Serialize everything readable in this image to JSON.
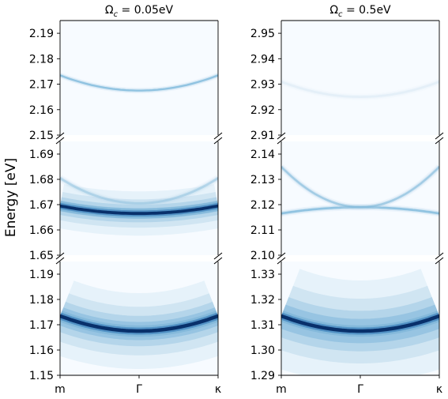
{
  "chart_data": {
    "type": "heatmap",
    "ylabel": "Energy [eV]",
    "x_ticks": [
      "m",
      "Γ",
      "κ"
    ],
    "colormap": "Blues",
    "columns": [
      {
        "title_prefix": "Ω",
        "title_sub": "c",
        "title_suffix": " = 0.05eV",
        "panels": [
          {
            "ylim": [
              2.15,
              2.195
            ],
            "yticks": [
              "2.15",
              "2.16",
              "2.17",
              "2.18",
              "2.19"
            ],
            "bands": [
              {
                "gamma": 2.1675,
                "edge": 2.1735,
                "intensity": 0.45,
                "width": 0.0007,
                "halo": 0.0
              }
            ]
          },
          {
            "ylim": [
              1.65,
              1.695
            ],
            "yticks": [
              "1.65",
              "1.66",
              "1.67",
              "1.68",
              "1.69"
            ],
            "bands": [
              {
                "gamma": 1.6665,
                "edge": 1.6695,
                "intensity": 1.0,
                "width": 0.0012,
                "halo": 0.0035
              },
              {
                "gamma": 1.6705,
                "edge": 1.6805,
                "intensity": 0.35,
                "width": 0.0009,
                "halo": 0.0
              }
            ]
          },
          {
            "ylim": [
              1.15,
              1.195
            ],
            "yticks": [
              "1.15",
              "1.16",
              "1.17",
              "1.18",
              "1.19"
            ],
            "bands": [
              {
                "gamma": 1.1675,
                "edge": 1.1735,
                "intensity": 1.0,
                "width": 0.0014,
                "halo": 0.006
              }
            ]
          }
        ]
      },
      {
        "title_prefix": "Ω",
        "title_sub": "c",
        "title_suffix": " = 0.5eV",
        "panels": [
          {
            "ylim": [
              2.91,
              2.955
            ],
            "yticks": [
              "2.91",
              "2.92",
              "2.93",
              "2.94",
              "2.95"
            ],
            "bands": [
              {
                "gamma": 2.925,
                "edge": 2.931,
                "intensity": 0.12,
                "width": 0.0008,
                "halo": 0.0
              }
            ]
          },
          {
            "ylim": [
              2.1,
              2.145
            ],
            "yticks": [
              "2.10",
              "2.11",
              "2.12",
              "2.13",
              "2.14"
            ],
            "bands": [
              {
                "gamma": 2.119,
                "edge": 2.1165,
                "intensity": 0.45,
                "width": 0.0008,
                "halo": 0.0
              },
              {
                "gamma": 2.119,
                "edge": 2.135,
                "intensity": 0.4,
                "width": 0.0008,
                "halo": 0.0
              }
            ]
          },
          {
            "ylim": [
              1.29,
              1.335
            ],
            "yticks": [
              "1.29",
              "1.30",
              "1.31",
              "1.32",
              "1.33"
            ],
            "bands": [
              {
                "gamma": 1.3075,
                "edge": 1.3135,
                "intensity": 1.0,
                "width": 0.0014,
                "halo": 0.008
              }
            ]
          }
        ]
      }
    ]
  }
}
